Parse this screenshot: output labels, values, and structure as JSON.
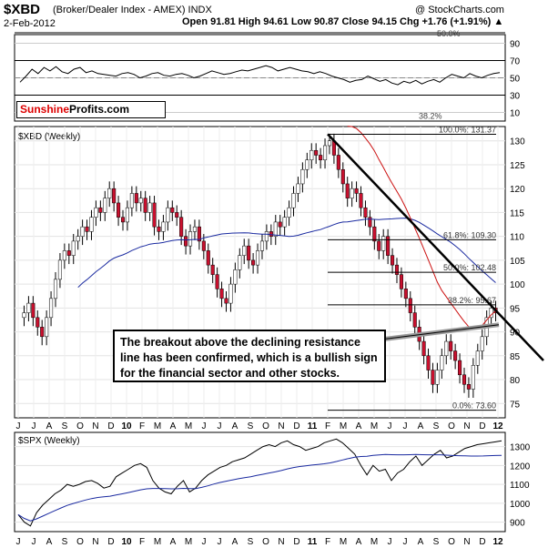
{
  "header": {
    "symbol": "$XBD",
    "name": "(Broker/Dealer Index - AMEX) INDX",
    "date": "2-Feb-2012",
    "ohlc": "Open 91.81 High 94.61 Low 90.87 Close 94.15 Chg +1.76 (+1.91%) ▲",
    "copyright": "@ StockCharts.com"
  },
  "logo": {
    "part1": "Sunshine",
    "part2": "Profits.com"
  },
  "annotation": "The breakout above the declining resistance line has been confirmed, which is a bullish sign for the financial sector and other stocks.",
  "colors": {
    "up": "#ffffff",
    "down": "#c8102e",
    "ma_short": "#cc1111",
    "ma_long": "#1a2aa0",
    "fib": "#000000",
    "trend": "#000000",
    "gray_line": "#999999"
  },
  "chart_data": [
    {
      "type": "line",
      "panel": "RSI",
      "y_ticks": [
        10,
        30,
        50,
        70,
        90
      ],
      "ylim": [
        0,
        100
      ],
      "labels": {
        "level_50": "50.0%",
        "level_38": "38.2%"
      },
      "values": [
        45,
        52,
        60,
        55,
        62,
        58,
        63,
        57,
        55,
        60,
        62,
        56,
        58,
        55,
        54,
        53,
        52,
        55,
        56,
        54,
        50,
        52,
        55,
        56,
        53,
        52,
        54,
        55,
        53,
        50,
        52,
        55,
        58,
        56,
        54,
        55,
        57,
        59,
        58,
        60,
        62,
        64,
        62,
        58,
        60,
        62,
        60,
        58,
        57,
        55,
        57,
        55,
        52,
        50,
        48,
        45,
        47,
        48,
        52,
        49,
        46,
        48,
        44,
        42,
        46,
        44,
        47,
        43,
        46,
        48,
        45,
        50,
        54,
        52,
        50,
        55,
        52,
        50,
        53,
        55,
        56
      ]
    },
    {
      "type": "candlestick",
      "panel": "price",
      "title": "$XBD (Weekly)",
      "ylim": [
        72,
        133
      ],
      "y_ticks": [
        75,
        80,
        85,
        90,
        95,
        100,
        105,
        110,
        115,
        120,
        125,
        130
      ],
      "x_ticks": [
        "J",
        "J",
        "A",
        "S",
        "O",
        "N",
        "D",
        "10",
        "F",
        "M",
        "A",
        "M",
        "J",
        "J",
        "A",
        "S",
        "O",
        "N",
        "D",
        "11",
        "F",
        "M",
        "A",
        "M",
        "J",
        "J",
        "A",
        "S",
        "O",
        "N",
        "D",
        "12"
      ],
      "fibonacci": [
        {
          "label": "100.0%: 131.37",
          "value": 131.37
        },
        {
          "label": "61.8%: 109.30",
          "value": 109.3
        },
        {
          "label": "50.0%: 102.48",
          "value": 102.48
        },
        {
          "label": "38.2%: 95.67",
          "value": 95.67
        },
        {
          "label": "0.0%: 73.60",
          "value": 73.6
        }
      ],
      "closes": [
        94,
        96,
        93,
        91,
        89,
        93,
        97,
        101,
        105,
        107,
        106,
        109,
        110,
        112,
        111,
        114,
        116,
        115,
        118,
        120,
        117,
        114,
        113,
        116,
        119,
        117,
        118,
        115,
        117,
        112,
        111,
        113,
        116,
        115,
        114,
        110,
        108,
        111,
        112,
        109,
        107,
        104,
        102,
        99,
        97,
        96,
        100,
        103,
        106,
        108,
        105,
        104,
        107,
        109,
        111,
        110,
        113,
        112,
        114,
        116,
        119,
        121,
        124,
        126,
        128,
        127,
        126,
        129,
        130,
        127,
        124,
        121,
        118,
        120,
        119,
        116,
        114,
        112,
        109,
        107,
        110,
        106,
        104,
        102,
        99,
        97,
        94,
        91,
        88,
        85,
        82,
        79,
        82,
        85,
        88,
        86,
        84,
        81,
        79,
        78,
        83,
        86,
        89,
        93,
        95,
        94
      ]
    },
    {
      "type": "line",
      "panel": "SPX",
      "title": "$SPX (Weekly)",
      "ylim": [
        850,
        1375
      ],
      "y_ticks": [
        900,
        1000,
        1100,
        1200,
        1300
      ],
      "values": [
        940,
        900,
        880,
        950,
        990,
        1020,
        1050,
        1070,
        1100,
        1090,
        1100,
        1115,
        1120,
        1105,
        1080,
        1090,
        1140,
        1160,
        1180,
        1200,
        1210,
        1190,
        1120,
        1080,
        1060,
        1050,
        1090,
        1120,
        1060,
        1080,
        1120,
        1150,
        1170,
        1190,
        1200,
        1220,
        1230,
        1240,
        1260,
        1280,
        1300,
        1310,
        1300,
        1320,
        1330,
        1310,
        1300,
        1280,
        1290,
        1300,
        1320,
        1330,
        1340,
        1320,
        1290,
        1260,
        1200,
        1150,
        1200,
        1170,
        1180,
        1120,
        1160,
        1180,
        1220,
        1250,
        1200,
        1230,
        1260,
        1280,
        1240,
        1250,
        1270,
        1290,
        1300,
        1310,
        1315,
        1320,
        1325,
        1330
      ]
    }
  ]
}
